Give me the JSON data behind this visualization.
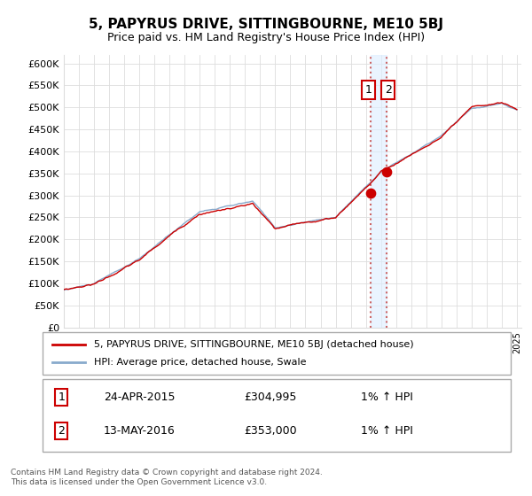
{
  "title": "5, PAPYRUS DRIVE, SITTINGBOURNE, ME10 5BJ",
  "subtitle": "Price paid vs. HM Land Registry's House Price Index (HPI)",
  "ylabel_ticks": [
    "£0",
    "£50K",
    "£100K",
    "£150K",
    "£200K",
    "£250K",
    "£300K",
    "£350K",
    "£400K",
    "£450K",
    "£500K",
    "£550K",
    "£600K"
  ],
  "ylim": [
    0,
    620000
  ],
  "yticks": [
    0,
    50000,
    100000,
    150000,
    200000,
    250000,
    300000,
    350000,
    400000,
    450000,
    500000,
    550000,
    600000
  ],
  "legend_line1": "5, PAPYRUS DRIVE, SITTINGBOURNE, ME10 5BJ (detached house)",
  "legend_line2": "HPI: Average price, detached house, Swale",
  "annotation1_label": "1",
  "annotation1_date": "24-APR-2015",
  "annotation1_price": "£304,995",
  "annotation1_hpi": "1% ↑ HPI",
  "annotation2_label": "2",
  "annotation2_date": "13-MAY-2016",
  "annotation2_price": "£353,000",
  "annotation2_hpi": "1% ↑ HPI",
  "footnote": "Contains HM Land Registry data © Crown copyright and database right 2024.\nThis data is licensed under the Open Government Licence v3.0.",
  "line1_color": "#cc0000",
  "line2_color": "#88aacc",
  "marker_color": "#cc0000",
  "vline_color": "#cc6666",
  "shade_color": "#ddeeff",
  "background_color": "#ffffff",
  "grid_color": "#dddddd",
  "sale1_x": 2015.31,
  "sale1_y": 304995,
  "sale2_x": 2016.37,
  "sale2_y": 353000,
  "xmin": 1995,
  "xmax": 2025
}
